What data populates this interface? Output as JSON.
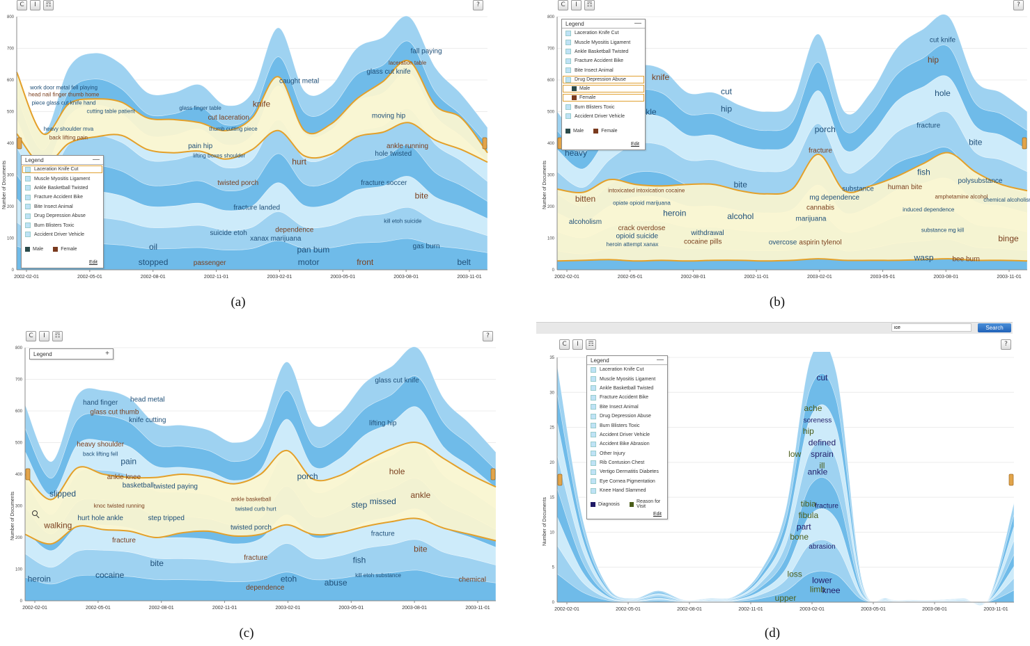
{
  "toolbar": {
    "refresh_glyph": "C",
    "text_glyph": "I",
    "comment_glyph": "☶",
    "help_glyph": "?"
  },
  "captions": {
    "a": "(a)",
    "b": "(b)",
    "c": "(c)",
    "d": "(d)"
  },
  "search": {
    "value": "ice",
    "button": "Search"
  },
  "legend": {
    "title": "Legend",
    "collapse": "—",
    "expand": "+",
    "edit": "Edit",
    "male": "Male",
    "female": "Female",
    "diagnosis": "Diagnosis",
    "reason_for_visit": "Reason for Visit",
    "topics_a": [
      "Laceration Knife Cut",
      "Muscle Myositis Ligament",
      "Ankle Basketball Twisted",
      "Fracture Accident Bike",
      "Bite Insect Animal",
      "Drug Depression Abuse",
      "Burn Blisters Toxic",
      "Accident Driver Vehicle"
    ],
    "topics_b_top": [
      "Laceration Knife Cut",
      "Muscle Myositis Ligament",
      "Ankle Basketball Twisted",
      "Fracture Accident Bike",
      "Bite Insect Animal",
      "Drug Depression Abuse"
    ],
    "topics_b_bottom": [
      "Burn Blisters Toxic",
      "Accident Driver Vehicle"
    ],
    "topics_d": [
      "Laceration Knife Cut",
      "Muscle Myositis Ligament",
      "Ankle Basketball Twisted",
      "Fracture Accident Bike",
      "Bite Insect Animal",
      "Drug Depression Abuse",
      "Burn Blisters Toxic",
      "Accident Driver Vehicle",
      "Accident Bike Abrasion",
      "Other Injury",
      "Rib Contusion Chest",
      "Vertigo Dermatitis Diabetes",
      "Eye Cornea Pigmentation",
      "Knee Hand Slammed"
    ]
  },
  "colors": {
    "stream_dark": "#6fbbe9",
    "stream_mid": "#9ed2f1",
    "stream_light": "#cdebfa",
    "highlight": "#fdf6cf",
    "border": "#e3a02a",
    "word_blue": "#1f4f78",
    "word_brown": "#7a3f1e",
    "male": "#2b4a4a",
    "female": "#7a3a1e",
    "diagnosis": "#1f1a66",
    "reason": "#4a5d1a"
  },
  "chart_data": [
    {
      "type": "area",
      "id": "a",
      "ylabel": "Number of Documents",
      "ylim": [
        0,
        800
      ],
      "yticks": [
        "0",
        "100",
        "200",
        "300",
        "400",
        "500",
        "600",
        "700",
        "800"
      ],
      "xticks": [
        "2002-02-01",
        "2002-05-01",
        "2002-08-01",
        "2002-11-01",
        "2003-02-01",
        "2003-05-01",
        "2003-08-01",
        "2003-11-01"
      ],
      "total": [
        625,
        430,
        640,
        685,
        650,
        560,
        560,
        585,
        520,
        560,
        765,
        565,
        580,
        700,
        735,
        820,
        640,
        555,
        450
      ],
      "highlight_upper": [
        625,
        430,
        525,
        540,
        530,
        480,
        475,
        465,
        440,
        480,
        610,
        440,
        460,
        540,
        595,
        660,
        520,
        480,
        370
      ],
      "highlight_lower": [
        430,
        330,
        400,
        420,
        425,
        380,
        370,
        375,
        350,
        380,
        440,
        360,
        365,
        420,
        435,
        465,
        410,
        380,
        340
      ],
      "words": [
        {
          "t": "work door metal fell playing",
          "x": 0.1,
          "y": 570
        },
        {
          "t": "head nail finger thumb home",
          "x": 0.1,
          "y": 548
        },
        {
          "t": "piece glass cut knife hand",
          "x": 0.1,
          "y": 522
        },
        {
          "t": "cutting table patient",
          "x": 0.2,
          "y": 496
        },
        {
          "t": "back lifting pain",
          "x": 0.11,
          "y": 412
        },
        {
          "t": "heavy shoulder mva",
          "x": 0.11,
          "y": 440
        },
        {
          "t": "glass finger table",
          "x": 0.39,
          "y": 505
        },
        {
          "t": "cut laceration",
          "x": 0.45,
          "y": 475
        },
        {
          "t": "thumb cutting piece",
          "x": 0.46,
          "y": 440
        },
        {
          "t": "caught metal",
          "x": 0.6,
          "y": 590
        },
        {
          "t": "knife",
          "x": 0.52,
          "y": 515
        },
        {
          "t": "pain hip",
          "x": 0.39,
          "y": 385
        },
        {
          "t": "lifting boxes shoulder",
          "x": 0.43,
          "y": 355
        },
        {
          "t": "twisted porch",
          "x": 0.47,
          "y": 268
        },
        {
          "t": "fracture landed",
          "x": 0.51,
          "y": 190
        },
        {
          "t": "xanax marijuana",
          "x": 0.55,
          "y": 92
        },
        {
          "t": "dependence",
          "x": 0.59,
          "y": 120
        },
        {
          "t": "oil",
          "x": 0.29,
          "y": 64
        },
        {
          "t": "stopped",
          "x": 0.29,
          "y": 15
        },
        {
          "t": "passenger",
          "x": 0.41,
          "y": 15
        },
        {
          "t": "pan bum",
          "x": 0.63,
          "y": 55
        },
        {
          "t": "motor",
          "x": 0.62,
          "y": 15
        },
        {
          "t": "front",
          "x": 0.74,
          "y": 15
        },
        {
          "t": "belt",
          "x": 0.95,
          "y": 15
        },
        {
          "t": "glass cut knife",
          "x": 0.79,
          "y": 620
        },
        {
          "t": "laceration table",
          "x": 0.83,
          "y": 648
        },
        {
          "t": "fall paying",
          "x": 0.87,
          "y": 685
        },
        {
          "t": "moving hip",
          "x": 0.79,
          "y": 480
        },
        {
          "t": "ankle running",
          "x": 0.83,
          "y": 385
        },
        {
          "t": "hole twisted",
          "x": 0.8,
          "y": 360
        },
        {
          "t": "fracture soccer",
          "x": 0.78,
          "y": 268
        },
        {
          "t": "bite",
          "x": 0.86,
          "y": 225
        },
        {
          "t": "kill etoh suicide",
          "x": 0.82,
          "y": 148
        },
        {
          "t": "gas burn",
          "x": 0.87,
          "y": 68
        },
        {
          "t": "hurt",
          "x": 0.6,
          "y": 333
        },
        {
          "t": "suicide etoh",
          "x": 0.45,
          "y": 110
        }
      ]
    },
    {
      "type": "area",
      "id": "b",
      "ylabel": "Number of Documents",
      "ylim": [
        0,
        800
      ],
      "yticks": [
        "0",
        "100",
        "200",
        "300",
        "400",
        "500",
        "600",
        "700",
        "800"
      ],
      "xticks": [
        "2002-02-01",
        "2002-05-01",
        "2002-08-01",
        "2002-11-01",
        "2003-02-01",
        "2003-05-01",
        "2003-08-01",
        "2003-11-01"
      ],
      "total": [
        500,
        420,
        560,
        640,
        635,
        560,
        560,
        520,
        500,
        530,
        745,
        500,
        560,
        700,
        760,
        800,
        600,
        560,
        500
      ],
      "highlight_upper": [
        255,
        245,
        285,
        270,
        265,
        270,
        270,
        250,
        240,
        255,
        365,
        250,
        265,
        295,
        335,
        370,
        310,
        270,
        250
      ],
      "highlight_lower": [
        28,
        30,
        32,
        28,
        30,
        28,
        30,
        30,
        28,
        30,
        35,
        30,
        30,
        30,
        32,
        35,
        30,
        30,
        28
      ],
      "words": [
        {
          "t": "heavy",
          "x": 0.04,
          "y": 360
        },
        {
          "t": "bitten",
          "x": 0.06,
          "y": 215
        },
        {
          "t": "alcoholism",
          "x": 0.06,
          "y": 145
        },
        {
          "t": "heroin attempt xanax",
          "x": 0.16,
          "y": 75
        },
        {
          "t": "intoxicated intoxication cocaine",
          "x": 0.19,
          "y": 245
        },
        {
          "t": "opiate opioid marijuana",
          "x": 0.18,
          "y": 205
        },
        {
          "t": "heroin",
          "x": 0.25,
          "y": 170
        },
        {
          "t": "crack overdose",
          "x": 0.18,
          "y": 125
        },
        {
          "t": "opioid suicide",
          "x": 0.17,
          "y": 100
        },
        {
          "t": "withdrawal",
          "x": 0.32,
          "y": 110
        },
        {
          "t": "cocaine pills",
          "x": 0.31,
          "y": 82
        },
        {
          "t": "alcohol",
          "x": 0.39,
          "y": 160
        },
        {
          "t": "bite",
          "x": 0.39,
          "y": 260
        },
        {
          "t": "cannabis",
          "x": 0.56,
          "y": 190
        },
        {
          "t": "marijuana",
          "x": 0.54,
          "y": 155
        },
        {
          "t": "mg dependence",
          "x": 0.59,
          "y": 222
        },
        {
          "t": "aspirin tylenol",
          "x": 0.56,
          "y": 80
        },
        {
          "t": "overcose",
          "x": 0.48,
          "y": 80
        },
        {
          "t": "substance",
          "x": 0.64,
          "y": 250
        },
        {
          "t": "human bite",
          "x": 0.74,
          "y": 255
        },
        {
          "t": "fish",
          "x": 0.78,
          "y": 300
        },
        {
          "t": "induced dependence",
          "x": 0.79,
          "y": 185
        },
        {
          "t": "amphetamine alcohol",
          "x": 0.86,
          "y": 225
        },
        {
          "t": "polysubstance",
          "x": 0.9,
          "y": 275
        },
        {
          "t": "substance mg kill",
          "x": 0.82,
          "y": 120
        },
        {
          "t": "binge",
          "x": 0.96,
          "y": 90
        },
        {
          "t": "chemical alcoholism",
          "x": 0.96,
          "y": 215
        },
        {
          "t": "wasp",
          "x": 0.78,
          "y": 30
        },
        {
          "t": "bee burn",
          "x": 0.87,
          "y": 28
        },
        {
          "t": "cut",
          "x": 0.36,
          "y": 555
        },
        {
          "t": "hip",
          "x": 0.36,
          "y": 500
        },
        {
          "t": "knife",
          "x": 0.22,
          "y": 600
        },
        {
          "t": "ankle",
          "x": 0.19,
          "y": 490
        },
        {
          "t": "porch",
          "x": 0.57,
          "y": 435
        },
        {
          "t": "fracture",
          "x": 0.56,
          "y": 370
        },
        {
          "t": "fracture",
          "x": 0.79,
          "y": 450
        },
        {
          "t": "hole",
          "x": 0.82,
          "y": 550
        },
        {
          "t": "hip",
          "x": 0.8,
          "y": 655
        },
        {
          "t": "cut knife",
          "x": 0.82,
          "y": 720
        },
        {
          "t": "bite",
          "x": 0.89,
          "y": 395
        }
      ]
    },
    {
      "type": "area",
      "id": "c",
      "ylabel": "Number of Documents",
      "ylim": [
        0,
        800
      ],
      "yticks": [
        "0",
        "100",
        "200",
        "300",
        "400",
        "500",
        "600",
        "700",
        "800"
      ],
      "xticks": [
        "2002-02-01",
        "2002-05-01",
        "2002-08-01",
        "2002-11-01",
        "2003-02-01",
        "2003-05-01",
        "2003-08-01",
        "2003-11-01"
      ],
      "total": [
        620,
        440,
        650,
        665,
        640,
        560,
        555,
        540,
        500,
        545,
        755,
        560,
        590,
        690,
        740,
        805,
        640,
        560,
        470
      ],
      "highlight_upper": [
        400,
        320,
        420,
        400,
        390,
        390,
        400,
        390,
        370,
        400,
        475,
        385,
        395,
        440,
        480,
        500,
        450,
        400,
        360
      ],
      "highlight_lower": [
        210,
        180,
        235,
        225,
        220,
        200,
        215,
        220,
        205,
        210,
        240,
        210,
        215,
        235,
        250,
        260,
        230,
        210,
        190
      ],
      "words": [
        {
          "t": "hand finger",
          "x": 0.16,
          "y": 620
        },
        {
          "t": "glass cut thumb",
          "x": 0.19,
          "y": 590
        },
        {
          "t": "head metal",
          "x": 0.26,
          "y": 630
        },
        {
          "t": "knife cutting",
          "x": 0.26,
          "y": 565
        },
        {
          "t": "heavy shoulder",
          "x": 0.16,
          "y": 488
        },
        {
          "t": "back lifting fell",
          "x": 0.16,
          "y": 458
        },
        {
          "t": "pain",
          "x": 0.22,
          "y": 432
        },
        {
          "t": "ankle knee",
          "x": 0.21,
          "y": 385
        },
        {
          "t": "basketball",
          "x": 0.24,
          "y": 358
        },
        {
          "t": "twisted paying",
          "x": 0.32,
          "y": 355
        },
        {
          "t": "knoc twisted running",
          "x": 0.2,
          "y": 295
        },
        {
          "t": "hurt hole ankle",
          "x": 0.16,
          "y": 255
        },
        {
          "t": "step tripped",
          "x": 0.3,
          "y": 255
        },
        {
          "t": "ankle basketball",
          "x": 0.48,
          "y": 315
        },
        {
          "t": "twisted curb hurt",
          "x": 0.49,
          "y": 285
        },
        {
          "t": "twisted porch",
          "x": 0.48,
          "y": 225
        },
        {
          "t": "fracture",
          "x": 0.49,
          "y": 130
        },
        {
          "t": "missed",
          "x": 0.76,
          "y": 305
        },
        {
          "t": "step",
          "x": 0.71,
          "y": 295
        },
        {
          "t": "ankle",
          "x": 0.84,
          "y": 325
        },
        {
          "t": "fracture",
          "x": 0.76,
          "y": 205
        },
        {
          "t": "fish",
          "x": 0.71,
          "y": 120
        },
        {
          "t": "bite",
          "x": 0.84,
          "y": 155
        },
        {
          "t": "kill etoh substance",
          "x": 0.75,
          "y": 75
        },
        {
          "t": "bite",
          "x": 0.28,
          "y": 110
        },
        {
          "t": "fracture",
          "x": 0.21,
          "y": 185
        },
        {
          "t": "heroin",
          "x": 0.03,
          "y": 60
        },
        {
          "t": "cocaine",
          "x": 0.18,
          "y": 72
        },
        {
          "t": "dependence",
          "x": 0.51,
          "y": 35
        },
        {
          "t": "etoh",
          "x": 0.56,
          "y": 60
        },
        {
          "t": "abuse",
          "x": 0.66,
          "y": 48
        },
        {
          "t": "chemical",
          "x": 0.95,
          "y": 60
        },
        {
          "t": "glass cut knife",
          "x": 0.79,
          "y": 690
        },
        {
          "t": "lifting hip",
          "x": 0.76,
          "y": 555
        },
        {
          "t": "hole",
          "x": 0.79,
          "y": 400
        },
        {
          "t": "porch",
          "x": 0.6,
          "y": 385
        },
        {
          "t": "slipped",
          "x": 0.08,
          "y": 330
        },
        {
          "t": "walking",
          "x": 0.07,
          "y": 230
        }
      ]
    },
    {
      "type": "area",
      "id": "d",
      "ylabel": "Number of Documents",
      "ylim": [
        0,
        32
      ],
      "yticks": [
        "0",
        "5",
        "10",
        "15",
        "20",
        "25",
        "30",
        "35"
      ],
      "xticks": [
        "2002-02-01",
        "2002-05-01",
        "2002-08-01",
        "2002-11-01",
        "2003-02-01",
        "2003-05-01",
        "2003-08-01",
        "2003-11-01"
      ],
      "total": [
        31,
        11,
        2,
        0.5,
        1.5,
        0.3,
        0.5,
        0.8,
        4,
        12,
        32,
        30,
        3,
        0.5,
        0.3,
        0.3,
        0.5,
        0.5,
        13
      ],
      "highlight_upper": [],
      "highlight_lower": [],
      "words": [
        {
          "t": "cut",
          "x": 0.58,
          "y": 29
        },
        {
          "t": "ache",
          "x": 0.56,
          "y": 25
        },
        {
          "t": "soreness",
          "x": 0.57,
          "y": 23.5
        },
        {
          "t": "hip",
          "x": 0.55,
          "y": 22
        },
        {
          "t": "defined",
          "x": 0.58,
          "y": 20.5
        },
        {
          "t": "low",
          "x": 0.52,
          "y": 19
        },
        {
          "t": "sprain",
          "x": 0.58,
          "y": 19
        },
        {
          "t": "ill",
          "x": 0.58,
          "y": 17.5
        },
        {
          "t": "ankle",
          "x": 0.57,
          "y": 16.7
        },
        {
          "t": "tibia",
          "x": 0.55,
          "y": 12.5
        },
        {
          "t": "fracture",
          "x": 0.59,
          "y": 12.3
        },
        {
          "t": "fibula",
          "x": 0.55,
          "y": 11
        },
        {
          "t": "part",
          "x": 0.54,
          "y": 9.5
        },
        {
          "t": "bone",
          "x": 0.53,
          "y": 8.2
        },
        {
          "t": "abrasion",
          "x": 0.58,
          "y": 7
        },
        {
          "t": "loss",
          "x": 0.52,
          "y": 3.3
        },
        {
          "t": "lower",
          "x": 0.58,
          "y": 2.5
        },
        {
          "t": "limb",
          "x": 0.57,
          "y": 1.3
        },
        {
          "t": "knee",
          "x": 0.6,
          "y": 1.2
        },
        {
          "t": "upper",
          "x": 0.5,
          "y": 0.2
        }
      ]
    }
  ]
}
